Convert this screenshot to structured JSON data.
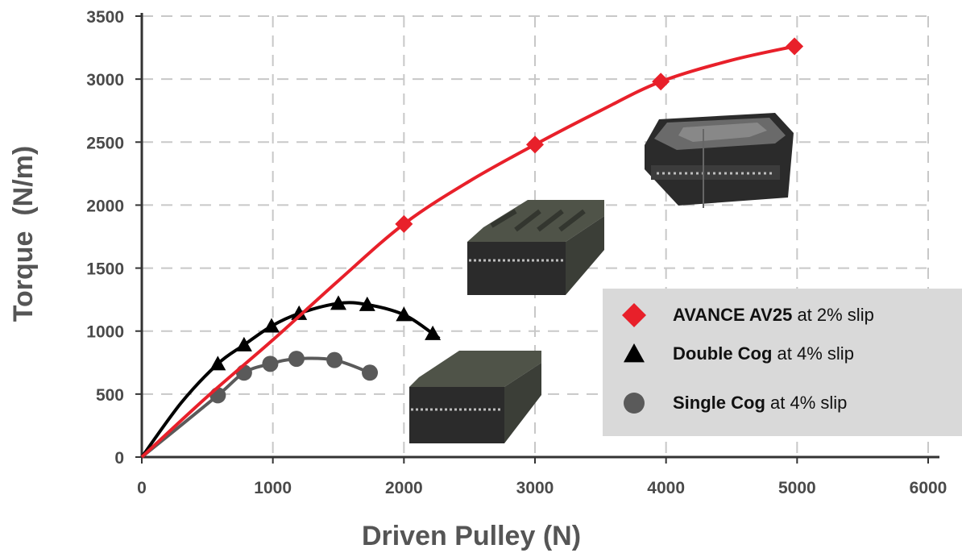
{
  "chart_data": {
    "type": "line",
    "title": "",
    "xlabel": "Driven Pulley (N)",
    "ylabel": "Torque  (N/m)",
    "xlim": [
      0,
      6000
    ],
    "ylim": [
      0,
      3500
    ],
    "xticks": [
      0,
      1000,
      2000,
      3000,
      4000,
      5000,
      6000
    ],
    "yticks": [
      0,
      500,
      1000,
      1500,
      2000,
      2500,
      3000,
      3500
    ],
    "grid": "dashed",
    "legend_position": "bottom-right",
    "series": [
      {
        "name_bold": "AVANCE AV25",
        "name_rest": " at 2% slip",
        "marker": "diamond",
        "color": "#e8202a",
        "points": [
          [
            2000,
            1850
          ],
          [
            3000,
            2480
          ],
          [
            3960,
            2980
          ],
          [
            4980,
            3260
          ]
        ],
        "curve": [
          [
            0,
            0
          ],
          [
            500,
            480
          ],
          [
            1000,
            930
          ],
          [
            1500,
            1400
          ],
          [
            2000,
            1850
          ],
          [
            2500,
            2190
          ],
          [
            3000,
            2480
          ],
          [
            3500,
            2750
          ],
          [
            3960,
            2980
          ],
          [
            4500,
            3150
          ],
          [
            4980,
            3260
          ]
        ]
      },
      {
        "name_bold": "Double Cog",
        "name_rest": " at 4% slip",
        "marker": "triangle",
        "color": "#000000",
        "points": [
          [
            580,
            740
          ],
          [
            780,
            890
          ],
          [
            990,
            1040
          ],
          [
            1200,
            1140
          ],
          [
            1500,
            1220
          ],
          [
            1720,
            1210
          ],
          [
            2000,
            1130
          ],
          [
            2220,
            980
          ]
        ],
        "curve": [
          [
            0,
            0
          ],
          [
            300,
            430
          ],
          [
            580,
            740
          ],
          [
            780,
            890
          ],
          [
            990,
            1040
          ],
          [
            1200,
            1140
          ],
          [
            1500,
            1220
          ],
          [
            1720,
            1210
          ],
          [
            2000,
            1130
          ],
          [
            2220,
            980
          ],
          [
            2270,
            940
          ]
        ]
      },
      {
        "name_bold": "Single Cog",
        "name_rest": " at 4% slip",
        "marker": "circle",
        "color": "#5a5a5a",
        "points": [
          [
            580,
            490
          ],
          [
            780,
            670
          ],
          [
            980,
            740
          ],
          [
            1180,
            780
          ],
          [
            1470,
            770
          ],
          [
            1740,
            670
          ]
        ],
        "curve": [
          [
            0,
            0
          ],
          [
            580,
            490
          ],
          [
            780,
            670
          ],
          [
            980,
            740
          ],
          [
            1180,
            780
          ],
          [
            1470,
            770
          ],
          [
            1740,
            670
          ]
        ]
      }
    ]
  },
  "colors": {
    "grid": "#c8c8c8",
    "axis": "#333333",
    "legend_bg": "#d9d9d9",
    "belt_dark": "#2b2b2b",
    "belt_green": "#4f5348"
  },
  "icons": [
    "double-cog-belt-image",
    "single-cog-belt-image",
    "avance-belt-image"
  ]
}
